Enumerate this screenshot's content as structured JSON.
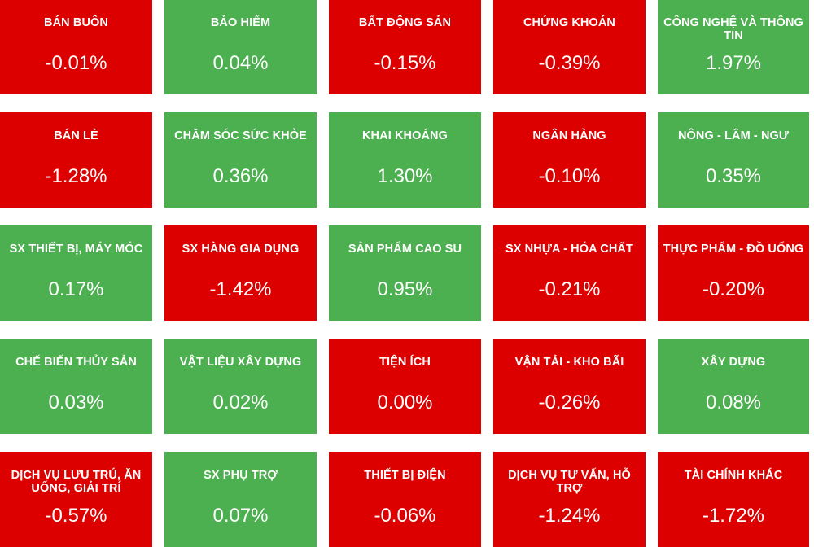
{
  "colors": {
    "down": "#dd0000",
    "up": "#4caf50",
    "text": "#ffffff"
  },
  "sectors": [
    {
      "name": "BÁN BUÔN",
      "change": "-0.01%",
      "direction": "down"
    },
    {
      "name": "BẢO HIỂM",
      "change": "0.04%",
      "direction": "up"
    },
    {
      "name": "BẤT ĐỘNG SẢN",
      "change": "-0.15%",
      "direction": "down"
    },
    {
      "name": "CHỨNG KHOÁN",
      "change": "-0.39%",
      "direction": "down"
    },
    {
      "name": "CÔNG NGHỆ VÀ THÔNG TIN",
      "change": "1.97%",
      "direction": "up"
    },
    {
      "name": "BÁN LẺ",
      "change": "-1.28%",
      "direction": "down"
    },
    {
      "name": "CHĂM SÓC SỨC KHỎE",
      "change": "0.36%",
      "direction": "up"
    },
    {
      "name": "KHAI KHOÁNG",
      "change": "1.30%",
      "direction": "up"
    },
    {
      "name": "NGÂN HÀNG",
      "change": "-0.10%",
      "direction": "down"
    },
    {
      "name": "NÔNG - LÂM - NGƯ",
      "change": "0.35%",
      "direction": "up"
    },
    {
      "name": "SX THIẾT BỊ, MÁY MÓC",
      "change": "0.17%",
      "direction": "up"
    },
    {
      "name": "SX HÀNG GIA DỤNG",
      "change": "-1.42%",
      "direction": "down"
    },
    {
      "name": "SẢN PHẨM CAO SU",
      "change": "0.95%",
      "direction": "up"
    },
    {
      "name": "SX NHỰA - HÓA CHẤT",
      "change": "-0.21%",
      "direction": "down"
    },
    {
      "name": "THỰC PHẨM - ĐỒ UỐNG",
      "change": "-0.20%",
      "direction": "down"
    },
    {
      "name": "CHẾ BIẾN THỦY SẢN",
      "change": "0.03%",
      "direction": "up"
    },
    {
      "name": "VẬT LIỆU XÂY DỰNG",
      "change": "0.02%",
      "direction": "up"
    },
    {
      "name": "TIỆN ÍCH",
      "change": "0.00%",
      "direction": "flat"
    },
    {
      "name": "VẬN TẢI - KHO BÃI",
      "change": "-0.26%",
      "direction": "down"
    },
    {
      "name": "XÂY DỰNG",
      "change": "0.08%",
      "direction": "up"
    },
    {
      "name": "DỊCH VỤ LƯU TRÚ, ĂN UỐNG, GIẢI TRÍ",
      "change": "-0.57%",
      "direction": "down"
    },
    {
      "name": "SX PHỤ TRỢ",
      "change": "0.07%",
      "direction": "up"
    },
    {
      "name": "THIẾT BỊ ĐIỆN",
      "change": "-0.06%",
      "direction": "down"
    },
    {
      "name": "DỊCH VỤ TƯ VẤN, HỖ TRỢ",
      "change": "-1.24%",
      "direction": "down"
    },
    {
      "name": "TÀI CHÍNH KHÁC",
      "change": "-1.72%",
      "direction": "down"
    }
  ]
}
